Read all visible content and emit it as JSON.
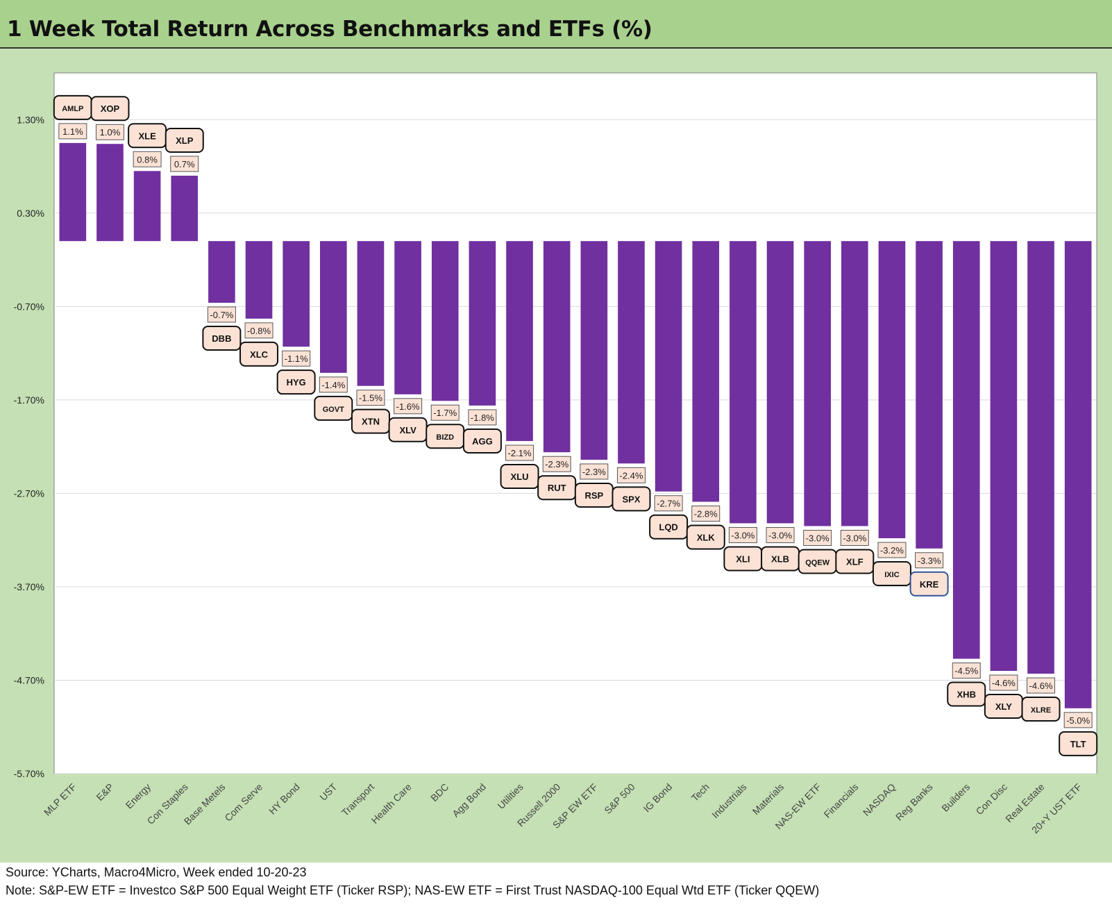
{
  "title": "1 Week Total Return Across Benchmarks and ETFs (%)",
  "footer": {
    "source": "Source: YCharts, Macro4Micro, Week ended 10-20-23",
    "note": "Note: S&P-EW ETF = Investco S&P 500 Equal Weight ETF (Ticker RSP); NAS-EW ETF = First Trust NASDAQ-100 Equal Wtd ETF (Ticker QQEW)"
  },
  "colors": {
    "bar": "#7030a0",
    "title_bg": "#a9d18e",
    "chart_bg": "#c5e0b4",
    "label_bg": "#fbe2d5"
  },
  "chart_data": {
    "type": "bar",
    "title": "1 Week Total Return Across Benchmarks and ETFs (%)",
    "ylim": [
      -5.7,
      1.8
    ],
    "yticks": [
      "1.30%",
      "0.30%",
      "-0.70%",
      "-1.70%",
      "-2.70%",
      "-3.70%",
      "-4.70%",
      "-5.70%"
    ],
    "ytick_values": [
      1.3,
      0.3,
      -0.7,
      -1.7,
      -2.7,
      -3.7,
      -4.7,
      -5.7
    ],
    "grid": true,
    "categories": [
      "MLP ETF",
      "E&P",
      "Energy",
      "Con Staples",
      "Base Metels",
      "Com Serve",
      "HY Bond",
      "UST",
      "Transport",
      "Health Care",
      "BDC",
      "Agg Bond",
      "Utilities",
      "Russell 2000",
      "S&P EW ETF",
      "S&P 500",
      "IG Bond",
      "Tech",
      "Industrials",
      "Materials",
      "NAS-EW ETF",
      "Financials",
      "NASDAQ",
      "Reg Banks",
      "Builders",
      "Con Disc",
      "Real Estate",
      "20+Y UST ETF"
    ],
    "tickers": [
      "AMLP",
      "XOP",
      "XLE",
      "XLP",
      "DBB",
      "XLC",
      "HYG",
      "GOVT",
      "XTN",
      "XLV",
      "BIZD",
      "AGG",
      "XLU",
      "RUT",
      "RSP",
      "SPX",
      "LQD",
      "XLK",
      "XLI",
      "XLB",
      "QQEW",
      "XLF",
      "IXIC",
      "KRE",
      "XHB",
      "XLY",
      "XLRE",
      "TLT"
    ],
    "values": [
      1.05,
      1.04,
      0.75,
      0.7,
      -0.66,
      -0.83,
      -1.13,
      -1.41,
      -1.55,
      -1.64,
      -1.71,
      -1.76,
      -2.14,
      -2.26,
      -2.34,
      -2.38,
      -2.68,
      -2.79,
      -3.02,
      -3.02,
      -3.05,
      -3.05,
      -3.18,
      -3.29,
      -4.47,
      -4.6,
      -4.63,
      -5.0
    ],
    "data_labels": [
      "1.1%",
      "1.0%",
      "0.8%",
      "0.7%",
      "-0.7%",
      "-0.8%",
      "-1.1%",
      "-1.4%",
      "-1.5%",
      "-1.6%",
      "-1.7%",
      "-1.8%",
      "-2.1%",
      "-2.3%",
      "-2.3%",
      "-2.4%",
      "-2.7%",
      "-2.8%",
      "-3.0%",
      "-3.0%",
      "-3.0%",
      "-3.0%",
      "-3.2%",
      "-3.3%",
      "-4.5%",
      "-4.6%",
      "-4.6%",
      "-5.0%"
    ]
  }
}
